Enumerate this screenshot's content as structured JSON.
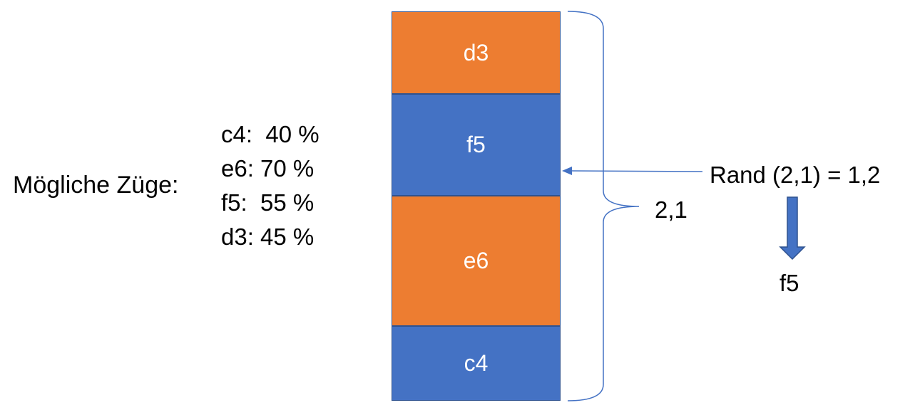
{
  "moves_heading": "Mögliche Züge:",
  "moves": [
    {
      "text": "c4:  40 %"
    },
    {
      "text": "e6: 70 %"
    },
    {
      "text": "f5:  55 %"
    },
    {
      "text": "d3: 45 %"
    }
  ],
  "segments": [
    {
      "label": "d3",
      "color": "#ed7d31"
    },
    {
      "label": "f5",
      "color": "#4472c4"
    },
    {
      "label": "e6",
      "color": "#ed7d31"
    },
    {
      "label": "c4",
      "color": "#4472c4"
    }
  ],
  "sum_label": "2,1",
  "rand_label": "Rand (2,1) = 1,2",
  "result_label": "f5",
  "colors": {
    "orange": "#ed7d31",
    "blue": "#4472c4",
    "line": "#4472c4"
  }
}
